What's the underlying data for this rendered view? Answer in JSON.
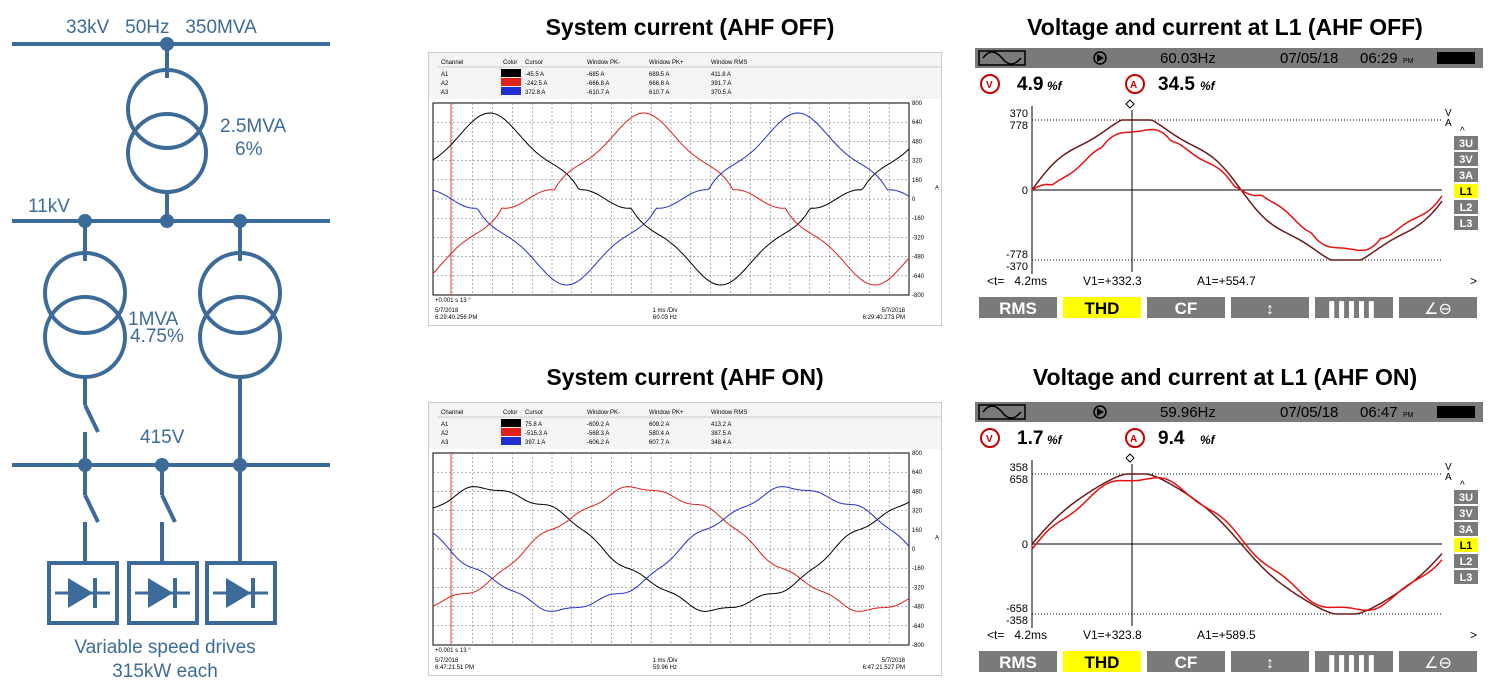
{
  "colors": {
    "diagram": "#3d6b99",
    "trace_black": "#000000",
    "trace_red": "#e0201b",
    "trace_blue": "#2030d0",
    "voltage": "#6b1a1a",
    "current": "#e81010",
    "fluke_bar": "#7a7a7a",
    "highlight": "#ffff00"
  },
  "oneline": {
    "supply": "33kV   50Hz   350MVA",
    "tx_main": {
      "rating": "2.5MVA",
      "impedance": "6%"
    },
    "mv_bus": "11kV",
    "tx_dist": {
      "rating": "1MVA",
      "impedance": "4.75%"
    },
    "lv_bus": "415V",
    "drives_line1": "Variable speed drives",
    "drives_line2": "315kW each"
  },
  "scope_off": {
    "title": "System current (AHF OFF)",
    "headers": [
      "Channel",
      "Color",
      "Cursor",
      "Window PK-",
      "Window PK+",
      "Window RMS"
    ],
    "rows": [
      [
        "A1",
        "-45.5 A",
        "-685 A",
        "689.5 A",
        "411.8 A"
      ],
      [
        "A2",
        "-242.5 A",
        "-666.8 A",
        "666.8 A",
        "391.7 A"
      ],
      [
        "A3",
        "372.8 A",
        "-610.7 A",
        "610.7 A",
        "370.5 A"
      ]
    ],
    "yticks": [
      "800",
      "640",
      "480",
      "320",
      "160",
      "0",
      "-160",
      "-320",
      "-480",
      "-640",
      "-800"
    ],
    "unit": "A",
    "cursor_label": "+0.001 s 13 °",
    "date_left": "5/7/2018",
    "time_left": "6:29:40.256 PM",
    "timebase": "1 ms /Div",
    "freq": "60.03 Hz",
    "date_right": "5/7/2018",
    "time_right": "6:29:40.273 PM"
  },
  "scope_on": {
    "title": "System current (AHF ON)",
    "headers": [
      "Channel",
      "Color",
      "Cursor",
      "Window PK-",
      "Window PK+",
      "Window RMS"
    ],
    "rows": [
      [
        "A1",
        "75.8 A",
        "-609.2 A",
        "609.2 A",
        "413.2 A"
      ],
      [
        "A2",
        "-515.3 A",
        "-568.3 A",
        "580.4 A",
        "387.5 A"
      ],
      [
        "A3",
        "397.1 A",
        "-606.2 A",
        "607.7 A",
        "348.4 A"
      ]
    ],
    "yticks": [
      "800",
      "640",
      "480",
      "320",
      "160",
      "0",
      "-160",
      "-320",
      "-480",
      "-640",
      "-800"
    ],
    "unit": "A",
    "cursor_label": "+0.001 s 13 °",
    "date_left": "5/7/2018",
    "time_left": "6:47:21.51 PM",
    "timebase": "1 ms /Div",
    "freq": "59.96 Hz",
    "date_right": "5/7/2018",
    "time_right": "6:47:21.527 PM"
  },
  "fluke_off": {
    "title": "Voltage and current at L1 (AHF OFF)",
    "freq": "60.03Hz",
    "date": "07/05/18",
    "time": "06:29",
    "v_thd": "4.9",
    "a_thd": "34.5",
    "thd_unit": "%f",
    "y_top_v": "370",
    "y_top_a": "778",
    "y_zero": "0",
    "y_bot_a": "-778",
    "y_bot_v": "-370",
    "readout_t": "<t=   4.2ms",
    "readout_v": "V1=+332.3",
    "readout_a": "A1=+554.7",
    "channels": [
      "3U",
      "3V",
      "3A",
      "L1",
      "L2",
      "L3"
    ],
    "buttons": [
      "RMS",
      "THD",
      "CF"
    ]
  },
  "fluke_on": {
    "title": "Voltage and current at L1 (AHF ON)",
    "freq": "59.96Hz",
    "date": "07/05/18",
    "time": "06:47",
    "v_thd": "1.7",
    "a_thd": "9.4",
    "thd_unit": "%f",
    "y_top_v": "358",
    "y_top_a": "658",
    "y_zero": "0",
    "y_bot_a": "-658",
    "y_bot_v": "-358",
    "readout_t": "<t=   4.2ms",
    "readout_v": "V1=+323.8",
    "readout_a": "A1=+589.5",
    "channels": [
      "3U",
      "3V",
      "3A",
      "L1",
      "L2",
      "L3"
    ],
    "buttons": [
      "RMS",
      "THD",
      "CF"
    ]
  }
}
